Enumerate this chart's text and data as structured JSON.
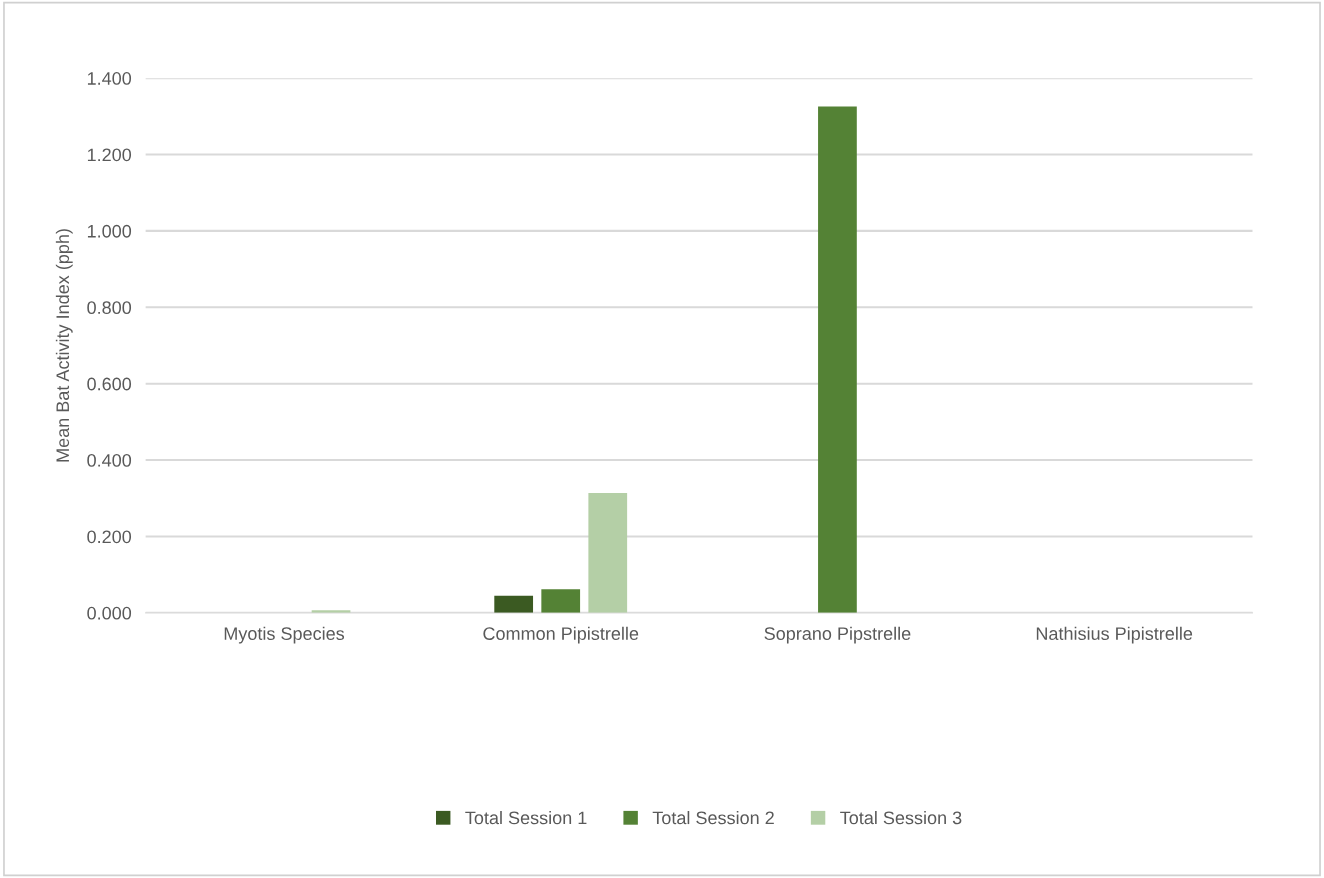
{
  "chart_data": {
    "type": "bar",
    "ylabel": "Mean Bat Activity Index (pph)",
    "categories": [
      "Myotis Species",
      "Common Pipistrelle",
      "Soprano Pipstrelle",
      "Nathisius Pipistrelle"
    ],
    "series": [
      {
        "name": "Total Session 1",
        "color": "#3b5a22",
        "values": [
          0,
          0.045,
          0,
          0
        ]
      },
      {
        "name": "Total Session 2",
        "color": "#548235",
        "values": [
          0,
          0.062,
          1.326,
          0
        ]
      },
      {
        "name": "Total Session 3",
        "color": "#b4cfa6",
        "values": [
          0.007,
          0.314,
          0,
          0
        ]
      }
    ],
    "ylim": [
      0,
      1.4
    ],
    "yticks": [
      {
        "value": 0,
        "label": "0.000"
      },
      {
        "value": 0.2,
        "label": "0.200"
      },
      {
        "value": 0.4,
        "label": "0.400"
      },
      {
        "value": 0.6,
        "label": "0.600"
      },
      {
        "value": 0.8,
        "label": "0.800"
      },
      {
        "value": 1.0,
        "label": "1.000"
      },
      {
        "value": 1.2,
        "label": "1.200"
      },
      {
        "value": 1.4,
        "label": "1.400"
      }
    ],
    "grid": "y",
    "legend": "bottom"
  }
}
